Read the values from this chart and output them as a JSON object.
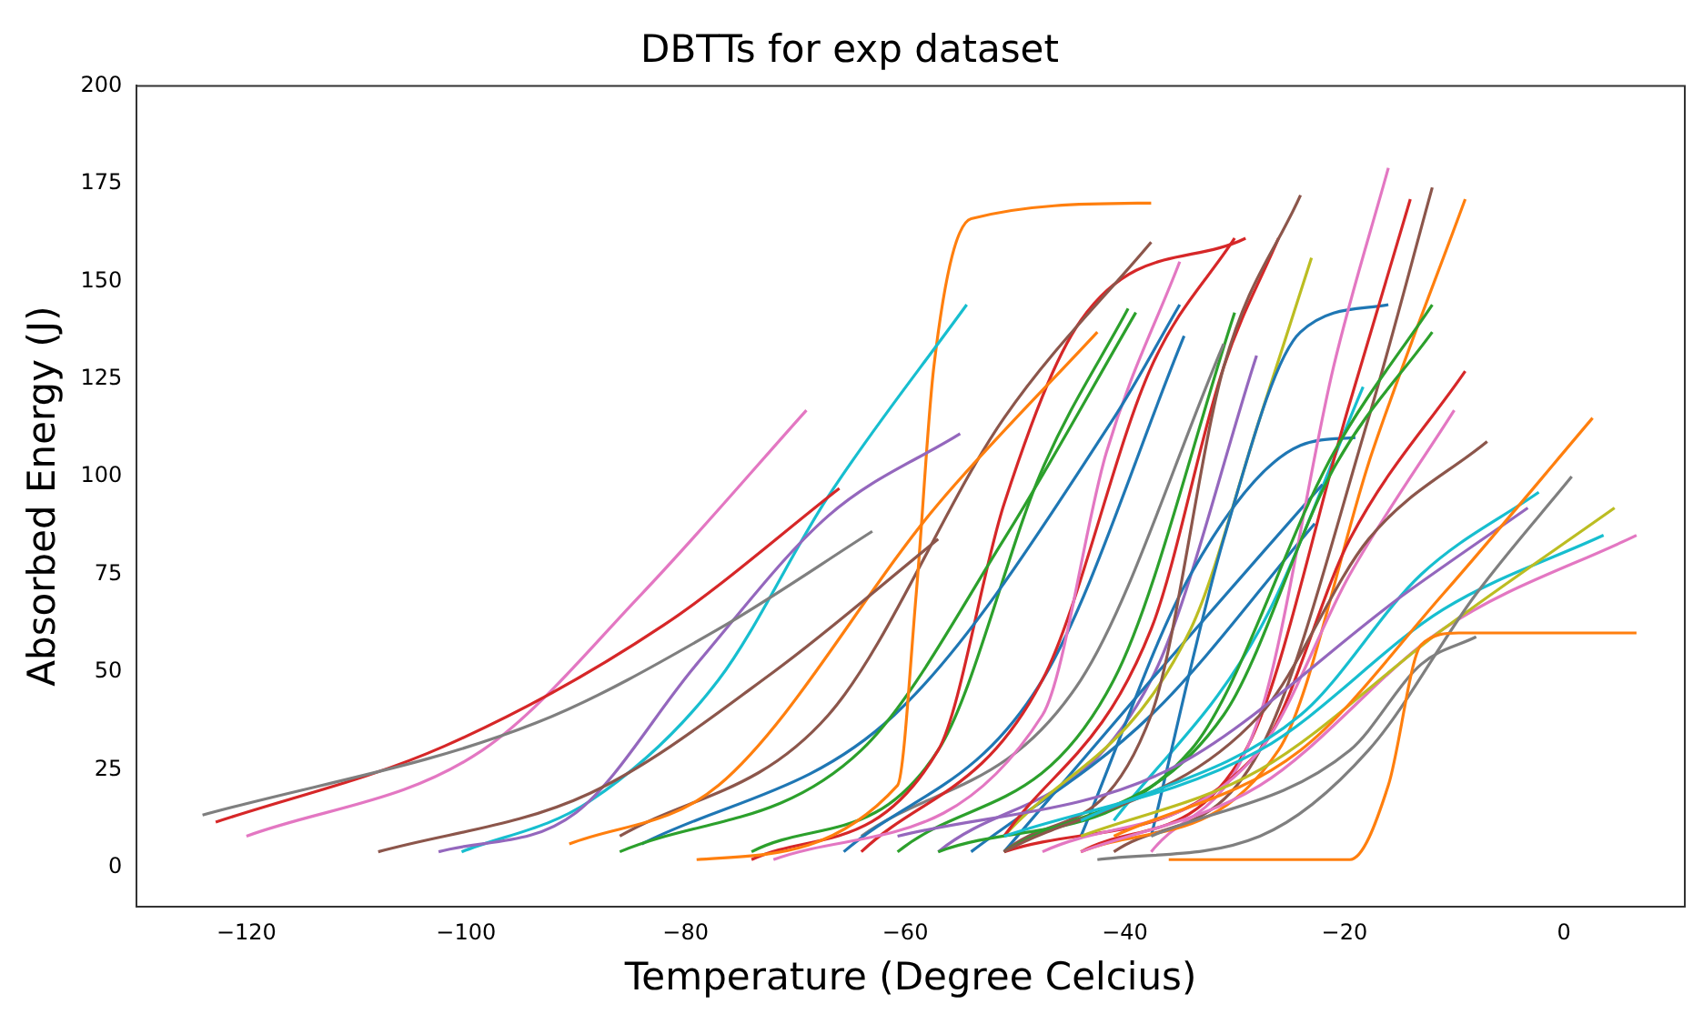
{
  "chart_data": {
    "type": "line",
    "title": "DBTTs for exp dataset",
    "xlabel": "Temperature (Degree Celcius)",
    "ylabel": "Absorbed Energy (J)",
    "xlim": [
      -130,
      11
    ],
    "ylim": [
      -10,
      200
    ],
    "xticks": [
      -120,
      -100,
      -80,
      -60,
      -40,
      -20,
      0
    ],
    "yticks": [
      0,
      25,
      50,
      75,
      100,
      125,
      150,
      175,
      200
    ],
    "grid": false,
    "legend": false,
    "marker": "none",
    "line_style": "solid",
    "series": [
      {
        "color": "#7f7f7f",
        "x": [
          -124,
          -93.6,
          -77,
          -63
        ],
        "values": [
          13.4,
          37,
          61,
          86
        ]
      },
      {
        "color": "#d62728",
        "x": [
          -122.8,
          -102,
          -82,
          -66
        ],
        "values": [
          11.6,
          31,
          62,
          97
        ]
      },
      {
        "color": "#e377c2",
        "x": [
          -120,
          -98.5,
          -84,
          -69
        ],
        "values": [
          8,
          30,
          70,
          117
        ]
      },
      {
        "color": "#8c564b",
        "x": [
          -108,
          -88.7,
          -72,
          -57
        ],
        "values": [
          4,
          19,
          50,
          84
        ]
      },
      {
        "color": "#9467bd",
        "x": [
          -102.5,
          -90,
          -79,
          -67,
          -55
        ],
        "values": [
          4,
          14,
          52,
          90,
          111
        ]
      },
      {
        "color": "#17becf",
        "x": [
          -100.4,
          -88.7,
          -77,
          -67,
          -54.4
        ],
        "values": [
          4,
          17,
          48,
          95,
          144
        ]
      },
      {
        "color": "#ff7f0e",
        "x": [
          -79,
          -60.7,
          -59,
          -57.4,
          -54,
          -37.6
        ],
        "values": [
          2,
          21,
          70,
          128,
          166,
          170
        ]
      },
      {
        "color": "#ff7f0e",
        "x": [
          -90.6,
          -77,
          -57,
          -42.5
        ],
        "values": [
          6,
          21,
          93,
          137
        ]
      },
      {
        "color": "#8c564b",
        "x": [
          -86,
          -67,
          -51,
          -37.6
        ],
        "values": [
          8,
          39,
          115,
          160
        ]
      },
      {
        "color": "#2ca02c",
        "x": [
          -86,
          -64,
          -51,
          -39
        ],
        "values": [
          4,
          30,
          84,
          142
        ]
      },
      {
        "color": "#1f77b4",
        "x": [
          -84,
          -61,
          -41,
          -35
        ],
        "values": [
          6,
          39,
          115,
          144
        ]
      },
      {
        "color": "#d62728",
        "x": [
          -74,
          -57,
          -51,
          -44,
          -29
        ],
        "values": [
          2,
          30,
          93,
          140,
          161
        ]
      },
      {
        "color": "#e377c2",
        "x": [
          -72,
          -47.5,
          -41.7,
          -35
        ],
        "values": [
          2,
          39,
          106,
          155
        ]
      },
      {
        "color": "#ff7f0e",
        "x": [
          -36,
          -19.5,
          -16,
          -13,
          -9.6,
          6.6
        ],
        "values": [
          2,
          2,
          21,
          57,
          60,
          60
        ]
      },
      {
        "color": "#7f7f7f",
        "x": [
          -37.6,
          -19.5,
          -13,
          -8
        ],
        "values": [
          8,
          30,
          52,
          59
        ]
      },
      {
        "color": "#7f7f7f",
        "x": [
          -42.5,
          -27.7,
          -17.8,
          -8,
          0.7
        ],
        "values": [
          2,
          8,
          30,
          70,
          100
        ]
      },
      {
        "color": "#ff7f0e",
        "x": [
          -41,
          -24,
          -11,
          2.6
        ],
        "values": [
          8,
          30,
          70,
          115
        ]
      },
      {
        "color": "#bcbd22",
        "x": [
          -44,
          -27.7,
          -11,
          4.6
        ],
        "values": [
          8,
          25,
          61,
          92
        ]
      },
      {
        "color": "#17becf",
        "x": [
          -51,
          -27.7,
          -11,
          3.6
        ],
        "values": [
          8,
          30,
          66,
          85
        ]
      },
      {
        "color": "#e377c2",
        "x": [
          -44,
          -27.7,
          -11,
          6.6
        ],
        "values": [
          4,
          21,
          61,
          85
        ]
      },
      {
        "color": "#9467bd",
        "x": [
          -60.7,
          -36,
          -14.5,
          -3.3
        ],
        "values": [
          8,
          25,
          70,
          92
        ]
      },
      {
        "color": "#17becf",
        "x": [
          -44,
          -24,
          -13,
          -2.3
        ],
        "values": [
          12,
          39,
          75,
          96
        ]
      },
      {
        "color": "#8c564b",
        "x": [
          -51,
          -27.7,
          -17.8,
          -7
        ],
        "values": [
          4,
          39,
          84,
          109
        ]
      },
      {
        "color": "#e377c2",
        "x": [
          -47.5,
          -27.7,
          -19.5,
          -10
        ],
        "values": [
          4,
          30,
          75,
          117
        ]
      },
      {
        "color": "#d62728",
        "x": [
          -51,
          -27.7,
          -19.5,
          -9
        ],
        "values": [
          4,
          30,
          84,
          127
        ]
      },
      {
        "color": "#2ca02c",
        "x": [
          -57,
          -34,
          -21,
          -12
        ],
        "values": [
          4,
          30,
          106,
          144
        ]
      },
      {
        "color": "#2ca02c",
        "x": [
          -51,
          -31,
          -21,
          -12
        ],
        "values": [
          4,
          39,
          102,
          137
        ]
      },
      {
        "color": "#ff7f0e",
        "x": [
          -44,
          -26,
          -17.5,
          -9
        ],
        "values": [
          4,
          30,
          106,
          171
        ]
      },
      {
        "color": "#e377c2",
        "x": [
          -37.6,
          -27.7,
          -21,
          -16
        ],
        "values": [
          4,
          39,
          128,
          179
        ]
      },
      {
        "color": "#8c564b",
        "x": [
          -41,
          -27.7,
          -17.8,
          -12
        ],
        "values": [
          4,
          30,
          115,
          174
        ]
      },
      {
        "color": "#d62728",
        "x": [
          -44,
          -29,
          -19.5,
          -14
        ],
        "values": [
          4,
          30,
          119,
          171
        ]
      },
      {
        "color": "#1f77b4",
        "x": [
          -37.6,
          -31,
          -24,
          -16
        ],
        "values": [
          8,
          84,
          137,
          144
        ]
      },
      {
        "color": "#8c564b",
        "x": [
          -51,
          -37.6,
          -31,
          -24
        ],
        "values": [
          4,
          39,
          128,
          172
        ]
      },
      {
        "color": "#d62728",
        "x": [
          -51,
          -37.6,
          -31,
          -26
        ],
        "values": [
          8,
          61,
          128,
          161
        ]
      },
      {
        "color": "#bcbd22",
        "x": [
          -51,
          -34,
          -27.7,
          -23
        ],
        "values": [
          8,
          61,
          115,
          156
        ]
      },
      {
        "color": "#1f77b4",
        "x": [
          -44,
          -34,
          -24,
          -19
        ],
        "values": [
          8,
          75,
          108,
          110
        ]
      },
      {
        "color": "#1f77b4",
        "x": [
          -51,
          -37.6,
          -22
        ],
        "values": [
          4,
          48,
          98
        ]
      },
      {
        "color": "#1f77b4",
        "x": [
          -54,
          -37.6,
          -22.7
        ],
        "values": [
          4,
          39,
          88
        ]
      },
      {
        "color": "#17becf",
        "x": [
          -41,
          -27.7,
          -18.3
        ],
        "values": [
          12,
          61,
          123
        ]
      },
      {
        "color": "#d62728",
        "x": [
          -64,
          -47.5,
          -37.6,
          -30
        ],
        "values": [
          4,
          48,
          128,
          161
        ]
      },
      {
        "color": "#2ca02c",
        "x": [
          -74,
          -57,
          -47.5,
          -39.7
        ],
        "values": [
          4,
          30,
          102,
          143
        ]
      },
      {
        "color": "#1f77b4",
        "x": [
          -65.6,
          -47.5,
          -34.6
        ],
        "values": [
          4,
          48,
          136
        ]
      },
      {
        "color": "#9467bd",
        "x": [
          -57,
          -37.6,
          -28
        ],
        "values": [
          4,
          48,
          131
        ]
      },
      {
        "color": "#7f7f7f",
        "x": [
          -64,
          -44,
          -31
        ],
        "values": [
          8,
          48,
          134
        ]
      },
      {
        "color": "#2ca02c",
        "x": [
          -60.7,
          -41,
          -30
        ],
        "values": [
          4,
          48,
          142
        ]
      }
    ]
  }
}
